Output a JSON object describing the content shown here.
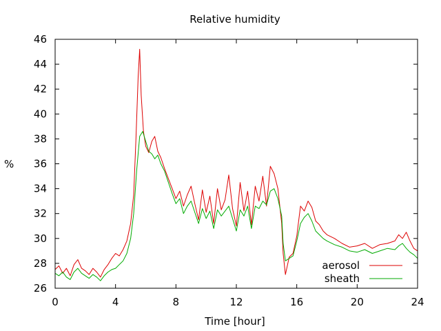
{
  "chart_data": {
    "type": "line",
    "title": "Relative humidity",
    "xlabel": "Time [hour]",
    "ylabel": "%",
    "xlim": [
      0,
      24
    ],
    "ylim": [
      26,
      46
    ],
    "x_ticks": [
      0,
      4,
      8,
      12,
      16,
      20,
      24
    ],
    "y_ticks": [
      26,
      28,
      30,
      32,
      34,
      36,
      38,
      40,
      42,
      44,
      46
    ],
    "grid": false,
    "legend_position": "bottom-right",
    "series": [
      {
        "name": "aerosol",
        "color": "#dd0000",
        "x": [
          0,
          0.25,
          0.5,
          0.75,
          1,
          1.25,
          1.5,
          1.75,
          2,
          2.25,
          2.5,
          2.75,
          3,
          3.25,
          3.5,
          3.75,
          4,
          4.25,
          4.5,
          4.75,
          5,
          5.2,
          5.35,
          5.5,
          5.6,
          5.7,
          5.85,
          6,
          6.2,
          6.4,
          6.6,
          6.8,
          7,
          7.25,
          7.5,
          7.75,
          8,
          8.25,
          8.5,
          8.75,
          9,
          9.25,
          9.5,
          9.75,
          10,
          10.25,
          10.5,
          10.75,
          11,
          11.25,
          11.5,
          11.75,
          12,
          12.25,
          12.5,
          12.75,
          13,
          13.25,
          13.5,
          13.75,
          14,
          14.25,
          14.5,
          14.75,
          15,
          15.1,
          15.25,
          15.5,
          15.75,
          16,
          16.25,
          16.5,
          16.75,
          17,
          17.25,
          17.5,
          17.75,
          18,
          18.5,
          19,
          19.5,
          20,
          20.5,
          21,
          21.5,
          22,
          22.5,
          22.75,
          23,
          23.25,
          23.5,
          23.75,
          24
        ],
        "y": [
          27.5,
          27.8,
          27.2,
          27.6,
          27.0,
          27.9,
          28.3,
          27.6,
          27.4,
          27.1,
          27.6,
          27.3,
          26.9,
          27.5,
          27.9,
          28.4,
          28.8,
          28.6,
          29.1,
          29.8,
          31.2,
          33.5,
          38.0,
          43.0,
          45.2,
          41.5,
          38.6,
          37.4,
          36.9,
          37.8,
          38.2,
          37.0,
          36.5,
          35.6,
          34.8,
          34.0,
          33.2,
          33.8,
          32.6,
          33.5,
          34.2,
          32.8,
          31.5,
          33.9,
          32.1,
          33.4,
          31.2,
          34.0,
          32.3,
          33.1,
          35.1,
          32.4,
          31.0,
          34.5,
          32.2,
          33.8,
          31.1,
          34.2,
          33.0,
          35.0,
          32.6,
          35.8,
          35.2,
          34.0,
          31.2,
          28.8,
          27.1,
          28.5,
          28.8,
          30.2,
          32.6,
          32.2,
          33.0,
          32.5,
          31.4,
          31.1,
          30.6,
          30.3,
          30.0,
          29.6,
          29.3,
          29.4,
          29.6,
          29.2,
          29.5,
          29.6,
          29.8,
          30.3,
          30.0,
          30.5,
          29.8,
          29.2,
          29.0
        ]
      },
      {
        "name": "sheath",
        "color": "#00aa00",
        "x": [
          0,
          0.25,
          0.5,
          0.75,
          1,
          1.25,
          1.5,
          1.75,
          2,
          2.25,
          2.5,
          2.75,
          3,
          3.25,
          3.5,
          3.75,
          4,
          4.25,
          4.5,
          4.75,
          5,
          5.2,
          5.4,
          5.6,
          5.8,
          6,
          6.2,
          6.4,
          6.6,
          6.8,
          7,
          7.25,
          7.5,
          7.75,
          8,
          8.25,
          8.5,
          8.75,
          9,
          9.25,
          9.5,
          9.75,
          10,
          10.25,
          10.5,
          10.75,
          11,
          11.25,
          11.5,
          11.75,
          12,
          12.25,
          12.5,
          12.75,
          13,
          13.25,
          13.5,
          13.75,
          14,
          14.25,
          14.5,
          14.75,
          15,
          15.1,
          15.25,
          15.5,
          15.75,
          16,
          16.25,
          16.5,
          16.75,
          17,
          17.25,
          17.5,
          17.75,
          18,
          18.5,
          19,
          19.5,
          20,
          20.5,
          21,
          21.5,
          22,
          22.5,
          22.75,
          23,
          23.25,
          23.5,
          23.75,
          24
        ],
        "y": [
          27.2,
          27.0,
          27.3,
          26.9,
          26.7,
          27.3,
          27.6,
          27.2,
          27.0,
          26.8,
          27.1,
          26.9,
          26.6,
          27.0,
          27.3,
          27.5,
          27.6,
          27.9,
          28.2,
          28.8,
          30.0,
          32.0,
          35.5,
          38.2,
          38.6,
          37.8,
          37.0,
          36.8,
          36.4,
          36.7,
          36.0,
          35.4,
          34.5,
          33.6,
          32.8,
          33.2,
          32.0,
          32.6,
          33.0,
          32.1,
          31.2,
          32.4,
          31.6,
          32.2,
          30.8,
          32.3,
          31.8,
          32.2,
          32.6,
          31.6,
          30.6,
          32.3,
          31.8,
          32.6,
          30.8,
          32.6,
          32.4,
          33.0,
          32.7,
          33.8,
          34.0,
          33.2,
          31.8,
          29.6,
          28.2,
          28.4,
          28.6,
          29.8,
          31.2,
          31.7,
          32.0,
          31.4,
          30.6,
          30.3,
          30.0,
          29.8,
          29.5,
          29.3,
          29.0,
          28.9,
          29.1,
          28.8,
          29.0,
          29.2,
          29.1,
          29.4,
          29.6,
          29.2,
          28.9,
          28.7,
          28.4
        ]
      }
    ]
  }
}
